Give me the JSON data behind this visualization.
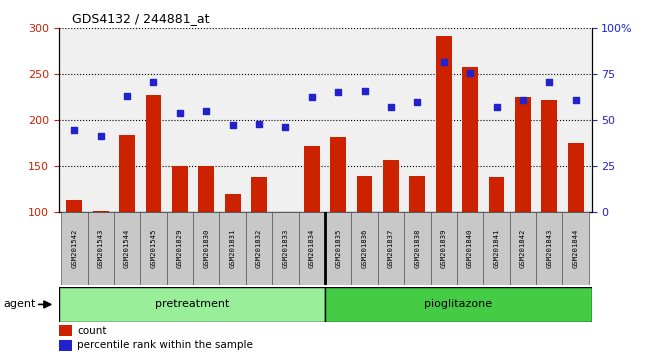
{
  "title": "GDS4132 / 244881_at",
  "samples": [
    "GSM201542",
    "GSM201543",
    "GSM201544",
    "GSM201545",
    "GSM201829",
    "GSM201830",
    "GSM201831",
    "GSM201832",
    "GSM201833",
    "GSM201834",
    "GSM201835",
    "GSM201836",
    "GSM201837",
    "GSM201838",
    "GSM201839",
    "GSM201840",
    "GSM201841",
    "GSM201842",
    "GSM201843",
    "GSM201844"
  ],
  "counts": [
    113,
    102,
    184,
    228,
    150,
    150,
    120,
    138,
    100,
    172,
    182,
    140,
    157,
    140,
    292,
    258,
    138,
    225,
    222,
    175
  ],
  "percentile_display": [
    190,
    183,
    227,
    242,
    208,
    210,
    195,
    196,
    193,
    225,
    231,
    232,
    215,
    220,
    263,
    251,
    215,
    222,
    242,
    222
  ],
  "pretreatment_count": 10,
  "pioglitazone_count": 10,
  "bar_color": "#cc2200",
  "dot_color": "#2222cc",
  "left_ylim": [
    100,
    300
  ],
  "left_yticks": [
    100,
    150,
    200,
    250,
    300
  ],
  "right_yticks": [
    0,
    25,
    50,
    75,
    100
  ],
  "right_yticklabels": [
    "0",
    "25",
    "50",
    "75",
    "100%"
  ],
  "pretreatment_color": "#99ee99",
  "pioglitazone_color": "#44cc44",
  "agent_label": "agent",
  "legend_count_label": "count",
  "legend_percentile_label": "percentile rank within the sample",
  "background_color": "#c8c8c8",
  "plot_bg_color": "#f0f0f0"
}
